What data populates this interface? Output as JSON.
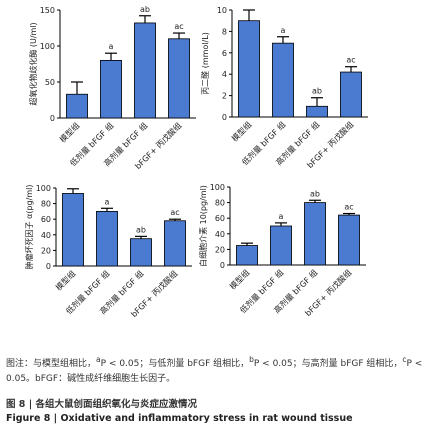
{
  "chart_data": [
    {
      "type": "bar",
      "ylabel": "超氧化物歧化酶 (U/ml)",
      "categories": [
        "模型组",
        "低剂量 bFGF 组",
        "高剂量 bFGF 组",
        "bFGF+ 丙戊酸组"
      ],
      "values": [
        33,
        80,
        132,
        110
      ],
      "errors": [
        17,
        10,
        10,
        8
      ],
      "annotations": [
        null,
        "a",
        "ab",
        "ac"
      ],
      "color": "#4a7bd0",
      "ylim": [
        0,
        150
      ],
      "yticks": [
        0,
        50,
        100,
        150
      ]
    },
    {
      "type": "bar",
      "ylabel": "丙二醛 (mmol/L)",
      "categories": [
        "模型组",
        "低剂量 bFGF 组",
        "高剂量 bFGF 组",
        "bFGF+ 丙戊酸组"
      ],
      "values": [
        9,
        6.9,
        1.0,
        4.2
      ],
      "errors": [
        1,
        0.6,
        0.8,
        0.5
      ],
      "annotations": [
        null,
        "a",
        "ab",
        "ac"
      ],
      "color": "#4a7bd0",
      "ylim": [
        0,
        10
      ],
      "yticks": [
        0,
        2,
        4,
        6,
        8,
        10
      ]
    },
    {
      "type": "bar",
      "ylabel": "肿瘤坏死因子 α(pg/ml)",
      "categories": [
        "模型组",
        "低剂量 bFGF 组",
        "高剂量 bFGF 组",
        "bFGF+ 丙戊酸组"
      ],
      "values": [
        93,
        70,
        35,
        58
      ],
      "errors": [
        6,
        4,
        3,
        2
      ],
      "annotations": [
        null,
        "a",
        "ab",
        "ac"
      ],
      "color": "#4a7bd0",
      "ylim": [
        0,
        100
      ],
      "yticks": [
        0,
        20,
        40,
        60,
        80,
        100
      ]
    },
    {
      "type": "bar",
      "ylabel": "白细胞介素 10(pg/ml)",
      "categories": [
        "模型组",
        "低剂量 bFGF 组",
        "高剂量 bFGF 组",
        "bFGF+ 丙戊酸组"
      ],
      "values": [
        25,
        50,
        80,
        64
      ],
      "errors": [
        3,
        4,
        3,
        2
      ],
      "annotations": [
        null,
        "a",
        "ab",
        "ac"
      ],
      "color": "#4a7bd0",
      "ylim": [
        0,
        100
      ],
      "yticks": [
        0,
        20,
        40,
        60,
        80,
        100
      ]
    }
  ],
  "figure": {
    "note": [
      "图注：与模型组相比，",
      {
        "sup": "a"
      },
      "P < 0.05；与低剂量 bFGF 组相比，",
      {
        "sup": "b"
      },
      "P < 0.05；与高剂量 bFGF 组相比，",
      {
        "sup": "c"
      },
      "P < 0.05。bFGF：碱性成纤维细胞生长因子。"
    ],
    "title_cn": "图 8 | 各组大鼠创面组织氧化与炎症应激情况",
    "title_en": "Figure 8 | Oxidative and inflammatory stress in rat wound tissue"
  }
}
